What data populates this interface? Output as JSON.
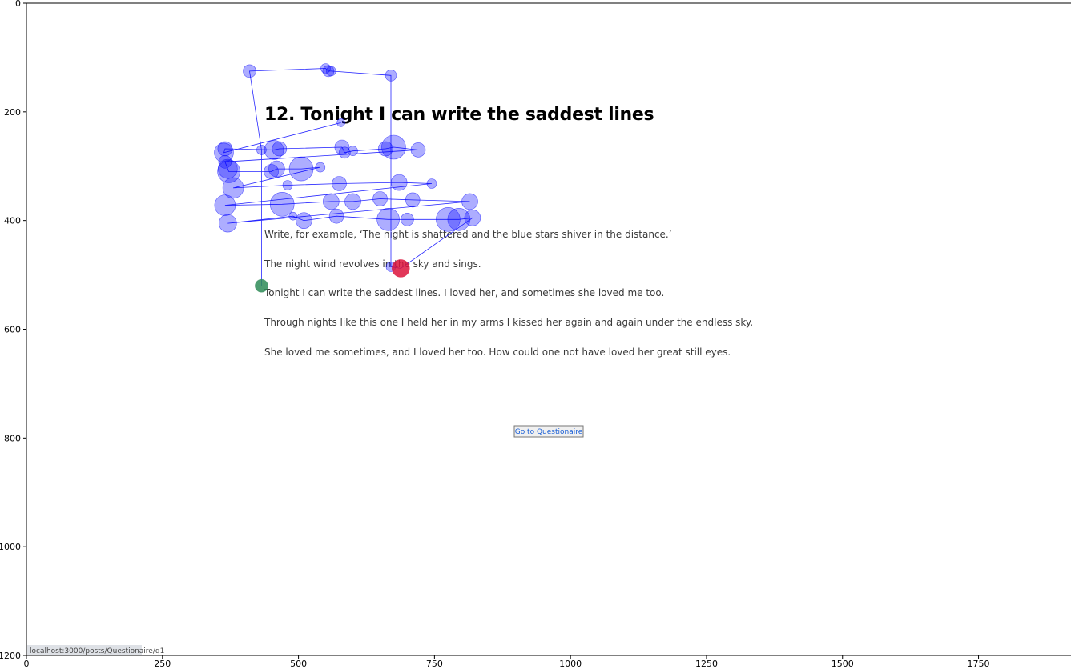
{
  "page": {
    "title": "12. Tonight I can write the saddest lines",
    "poem_lines": [
      "Write, for example, ‘The night is shattered and the blue stars shiver in the distance.’",
      "The night wind revolves in the sky and sings.",
      "Tonight I can write the saddest lines. I loved her, and sometimes she loved me too.",
      "Through nights like this one I held her in my arms I kissed her again and again under the endless sky.",
      "She loved me sometimes, and I loved her too. How could one not have loved her great still eyes."
    ],
    "button_label": "Go to Questionaire",
    "status_url": "localhost:3000/posts/Questionaire/q1"
  },
  "colors": {
    "fixation": "#0000ff",
    "start_fixation": "#2e8b57",
    "end_fixation": "#dc143c",
    "link": "#1a5fd6"
  },
  "chart_data": {
    "type": "scatter",
    "title": "",
    "xlabel": "",
    "ylabel": "",
    "xlim": [
      0,
      1920
    ],
    "ylim": [
      1200,
      0
    ],
    "xticks": [
      0,
      250,
      500,
      750,
      1000,
      1250,
      1500,
      1750
    ],
    "yticks": [
      0,
      200,
      400,
      600,
      800,
      1000,
      1200
    ],
    "grid": false,
    "legend": "none",
    "fixations": [
      {
        "x": 432,
        "y": 520,
        "size": 8
      },
      {
        "x": 432,
        "y": 270,
        "size": 6
      },
      {
        "x": 410,
        "y": 125,
        "size": 8
      },
      {
        "x": 550,
        "y": 120,
        "size": 6
      },
      {
        "x": 555,
        "y": 125,
        "size": 7
      },
      {
        "x": 560,
        "y": 125,
        "size": 6
      },
      {
        "x": 670,
        "y": 133,
        "size": 7
      },
      {
        "x": 578,
        "y": 220,
        "size": 5
      },
      {
        "x": 363,
        "y": 275,
        "size": 12
      },
      {
        "x": 365,
        "y": 268,
        "size": 9
      },
      {
        "x": 455,
        "y": 270,
        "size": 12
      },
      {
        "x": 465,
        "y": 268,
        "size": 9
      },
      {
        "x": 580,
        "y": 265,
        "size": 9
      },
      {
        "x": 585,
        "y": 275,
        "size": 7
      },
      {
        "x": 600,
        "y": 272,
        "size": 6
      },
      {
        "x": 660,
        "y": 268,
        "size": 9
      },
      {
        "x": 675,
        "y": 265,
        "size": 15
      },
      {
        "x": 720,
        "y": 270,
        "size": 9
      },
      {
        "x": 365,
        "y": 292,
        "size": 8
      },
      {
        "x": 370,
        "y": 305,
        "size": 12
      },
      {
        "x": 372,
        "y": 310,
        "size": 14
      },
      {
        "x": 450,
        "y": 310,
        "size": 9
      },
      {
        "x": 460,
        "y": 305,
        "size": 10
      },
      {
        "x": 505,
        "y": 305,
        "size": 15
      },
      {
        "x": 540,
        "y": 302,
        "size": 6
      },
      {
        "x": 380,
        "y": 340,
        "size": 13
      },
      {
        "x": 480,
        "y": 335,
        "size": 6
      },
      {
        "x": 575,
        "y": 332,
        "size": 9
      },
      {
        "x": 685,
        "y": 330,
        "size": 10
      },
      {
        "x": 745,
        "y": 332,
        "size": 6
      },
      {
        "x": 365,
        "y": 372,
        "size": 13
      },
      {
        "x": 470,
        "y": 370,
        "size": 15
      },
      {
        "x": 560,
        "y": 365,
        "size": 10
      },
      {
        "x": 600,
        "y": 365,
        "size": 10
      },
      {
        "x": 650,
        "y": 360,
        "size": 9
      },
      {
        "x": 710,
        "y": 362,
        "size": 9
      },
      {
        "x": 815,
        "y": 365,
        "size": 10
      },
      {
        "x": 370,
        "y": 405,
        "size": 11
      },
      {
        "x": 490,
        "y": 392,
        "size": 5
      },
      {
        "x": 510,
        "y": 400,
        "size": 10
      },
      {
        "x": 570,
        "y": 392,
        "size": 9
      },
      {
        "x": 665,
        "y": 398,
        "size": 14
      },
      {
        "x": 700,
        "y": 398,
        "size": 8
      },
      {
        "x": 775,
        "y": 398,
        "size": 15
      },
      {
        "x": 795,
        "y": 398,
        "size": 14
      },
      {
        "x": 820,
        "y": 395,
        "size": 10
      },
      {
        "x": 670,
        "y": 485,
        "size": 6
      },
      {
        "x": 688,
        "y": 488,
        "size": 11
      }
    ],
    "path_order": [
      0,
      1,
      2,
      3,
      4,
      5,
      6,
      46,
      47,
      45,
      44,
      43,
      42,
      41,
      40,
      39,
      38,
      37,
      36,
      35,
      34,
      33,
      32,
      31,
      30,
      29,
      28,
      27,
      26,
      25,
      24,
      23,
      22,
      21,
      20,
      19,
      18,
      17,
      16,
      15,
      14,
      13,
      12,
      11,
      10,
      9,
      8,
      7
    ]
  }
}
